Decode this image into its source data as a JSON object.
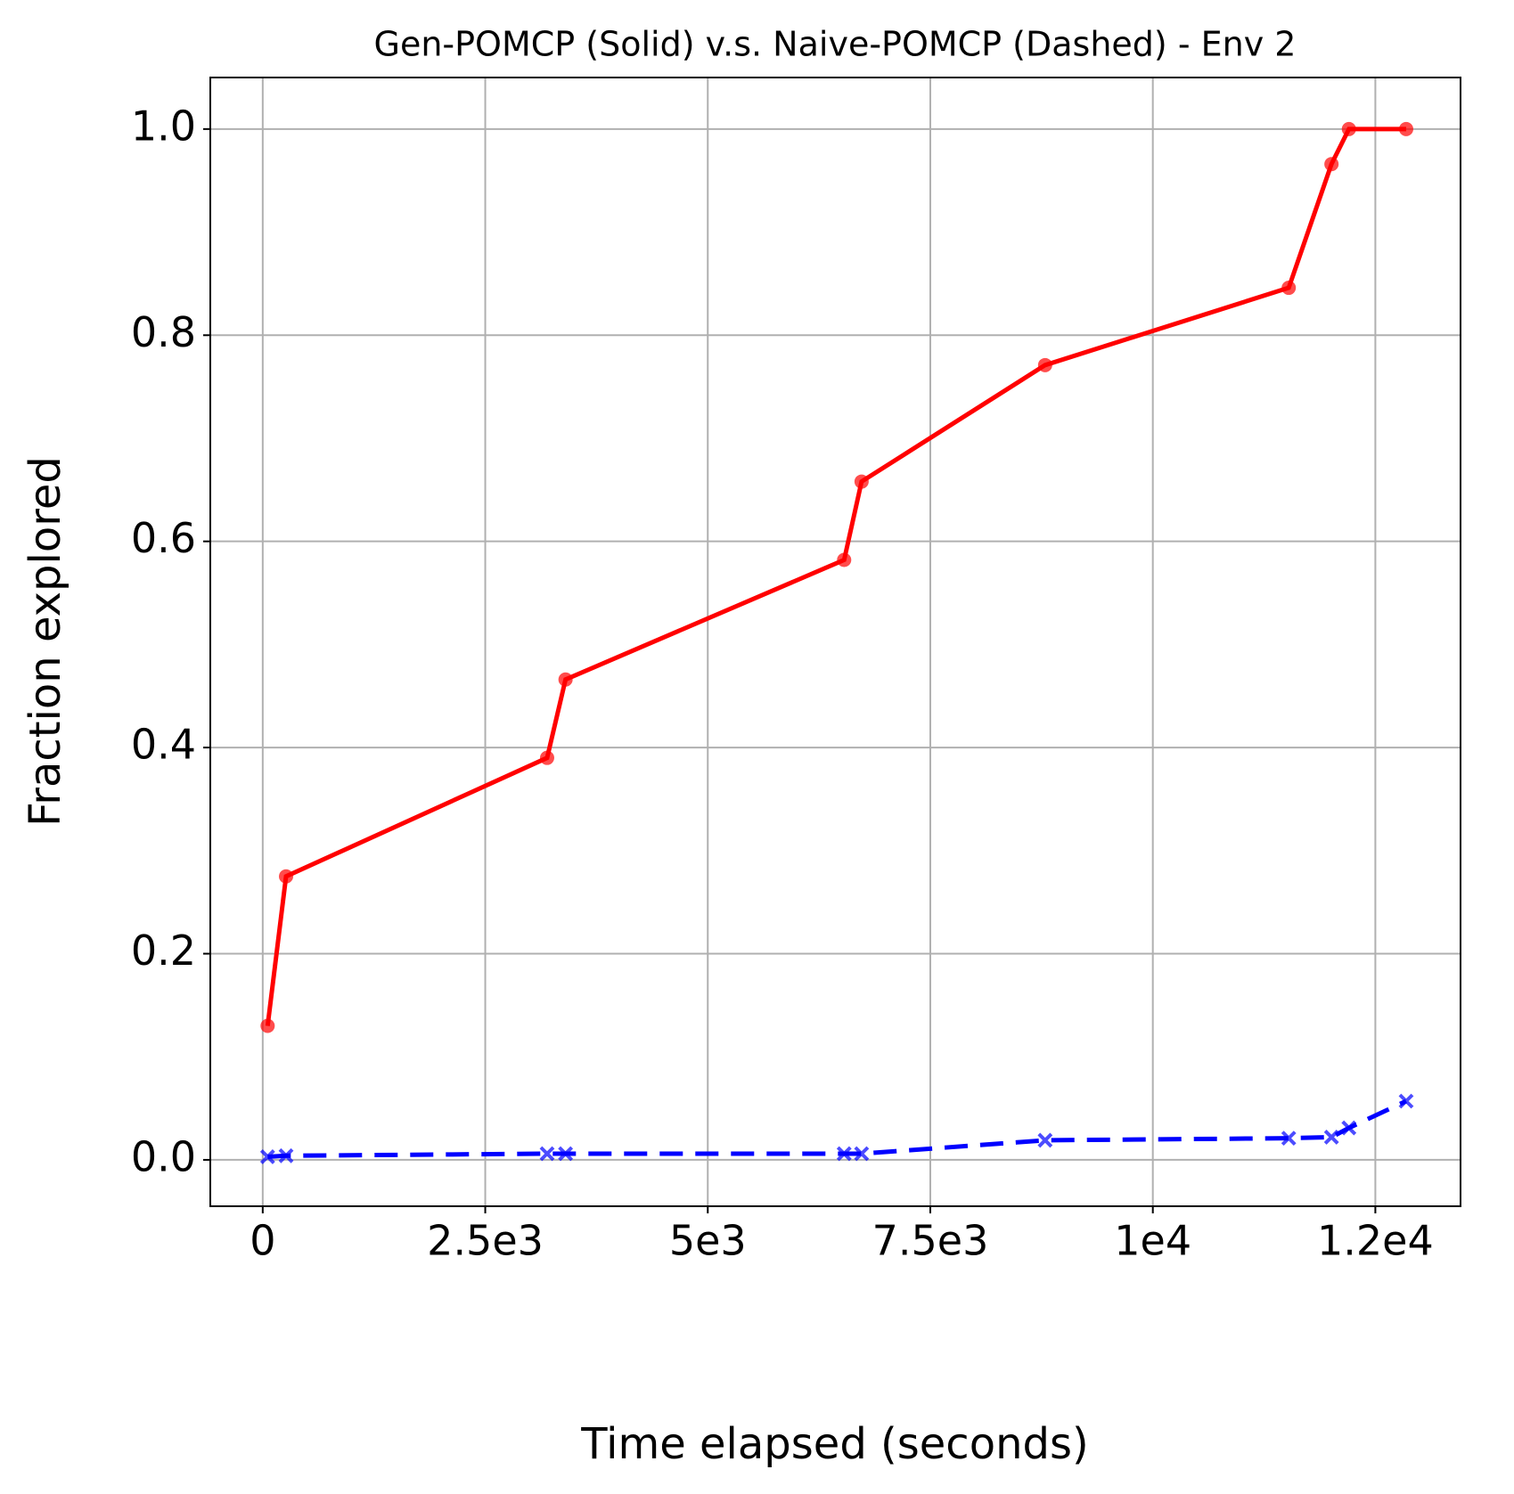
{
  "chart_data": {
    "type": "line",
    "title": "Gen-POMCP (Solid) v.s. Naive-POMCP (Dashed) - Env 2",
    "xlabel": "Time elapsed (seconds)",
    "ylabel": "Fraction explored",
    "x": [
      55,
      262,
      3195,
      3402,
      6532,
      6728,
      8790,
      11527,
      12007,
      12203,
      12846
    ],
    "series": [
      {
        "color": "#ff0000",
        "style": "solid",
        "marker": "o",
        "values": [
          0.13,
          0.275,
          0.39,
          0.466,
          0.582,
          0.658,
          0.771,
          0.846,
          0.966,
          1.0,
          1.0
        ]
      },
      {
        "color": "#0000ff",
        "style": "dashed",
        "marker": "x",
        "values": [
          0.003,
          0.004,
          0.006,
          0.006,
          0.006,
          0.006,
          0.019,
          0.021,
          0.022,
          0.031,
          0.057
        ]
      }
    ],
    "xlim": [
      -589,
      13457
    ],
    "ylim": [
      -0.045,
      1.05
    ],
    "xticks": [
      0,
      {
        "value": 2500,
        "label": "2.5e3"
      },
      {
        "value": 5000,
        "label": "5e3"
      },
      {
        "value": 7500,
        "label": "7.5e3"
      },
      {
        "value": 10000,
        "label": "1e4"
      },
      {
        "value": 12500,
        "label": "1.2e4"
      }
    ],
    "yticks": [
      {
        "value": 0,
        "label": "0.0"
      },
      0.2,
      0.4,
      0.6,
      0.8,
      {
        "value": 1,
        "label": "1.0"
      }
    ],
    "grid": true
  }
}
